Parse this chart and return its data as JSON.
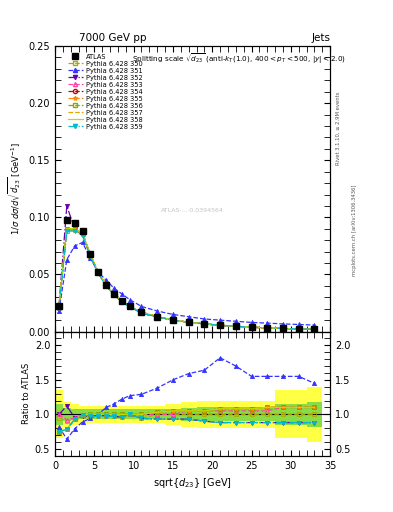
{
  "title_top": "7000 GeV pp",
  "title_right": "Jets",
  "xlabel": "sqrt{d_{23}} [GeV]",
  "ylabel_main": "1/σ dσ/dsqrt(d_{23}) [GeV^{-1}]",
  "ylabel_ratio": "Ratio to ATLAS",
  "rivet_label": "Rivet 3.1.10, ≥ 2.9M events",
  "arxiv_label": "mcplots.cern.ch [arXiv:1306.3436]",
  "xlim": [
    0,
    35
  ],
  "ylim_main": [
    0,
    0.25
  ],
  "ylim_ratio": [
    0.4,
    2.2
  ],
  "x_data": [
    0.5,
    1.5,
    2.5,
    3.5,
    4.5,
    5.5,
    6.5,
    7.5,
    8.5,
    9.5,
    11.0,
    13.0,
    15.0,
    17.0,
    19.0,
    21.0,
    23.0,
    25.0,
    27.0,
    29.0,
    31.0,
    33.0
  ],
  "x_widths": [
    1.0,
    1.0,
    1.0,
    1.0,
    1.0,
    1.0,
    1.0,
    1.0,
    1.0,
    1.0,
    2.0,
    2.0,
    2.0,
    2.0,
    2.0,
    2.0,
    2.0,
    2.0,
    2.0,
    2.0,
    2.0,
    2.0
  ],
  "atlas_y": [
    0.022,
    0.098,
    0.095,
    0.088,
    0.068,
    0.052,
    0.041,
    0.033,
    0.027,
    0.022,
    0.017,
    0.013,
    0.01,
    0.0082,
    0.0067,
    0.0055,
    0.0046,
    0.0038,
    0.0032,
    0.0027,
    0.0023,
    0.0019
  ],
  "atlas_band_yellow": [
    0.35,
    0.18,
    0.15,
    0.12,
    0.12,
    0.12,
    0.12,
    0.12,
    0.12,
    0.12,
    0.12,
    0.12,
    0.15,
    0.18,
    0.2,
    0.2,
    0.2,
    0.2,
    0.2,
    0.35,
    0.35,
    0.4
  ],
  "atlas_band_green": [
    0.15,
    0.09,
    0.08,
    0.07,
    0.07,
    0.07,
    0.07,
    0.07,
    0.07,
    0.07,
    0.07,
    0.07,
    0.08,
    0.09,
    0.1,
    0.1,
    0.1,
    0.1,
    0.1,
    0.15,
    0.15,
    0.18
  ],
  "series": [
    {
      "label": "Pythia 6.428 350",
      "color": "#aaaa00",
      "ls": "--",
      "marker": "s",
      "mfc": "none",
      "filled": false,
      "y_main": [
        0.021,
        0.088,
        0.089,
        0.085,
        0.066,
        0.051,
        0.04,
        0.032,
        0.026,
        0.022,
        0.016,
        0.013,
        0.01,
        0.0082,
        0.0067,
        0.0055,
        0.0046,
        0.0038,
        0.0032,
        0.0027,
        0.0023,
        0.0019
      ],
      "y_ratio": [
        0.95,
        0.9,
        0.94,
        0.97,
        0.97,
        0.98,
        0.98,
        0.97,
        0.96,
        1.0,
        0.94,
        1.0,
        1.0,
        1.0,
        1.0,
        1.0,
        1.0,
        1.0,
        1.0,
        1.0,
        1.0,
        1.0
      ]
    },
    {
      "label": "Pythia 6.428 351",
      "color": "#3333ff",
      "ls": "--",
      "marker": "^",
      "mfc": "#3333ff",
      "filled": true,
      "y_main": [
        0.018,
        0.063,
        0.075,
        0.078,
        0.064,
        0.052,
        0.045,
        0.038,
        0.033,
        0.028,
        0.022,
        0.018,
        0.015,
        0.013,
        0.011,
        0.01,
        0.009,
        0.008,
        0.0074,
        0.0067,
        0.0062,
        0.0057
      ],
      "y_ratio": [
        0.82,
        0.64,
        0.79,
        0.89,
        0.94,
        1.0,
        1.1,
        1.15,
        1.22,
        1.27,
        1.29,
        1.38,
        1.5,
        1.59,
        1.64,
        1.82,
        1.7,
        1.55,
        1.55,
        1.55,
        1.55,
        1.45
      ]
    },
    {
      "label": "Pythia 6.428 352",
      "color": "#6600aa",
      "ls": "-.",
      "marker": "v",
      "mfc": "#6600aa",
      "filled": true,
      "y_main": [
        0.022,
        0.11,
        0.09,
        0.085,
        0.066,
        0.051,
        0.04,
        0.032,
        0.026,
        0.022,
        0.016,
        0.013,
        0.01,
        0.0082,
        0.0067,
        0.0055,
        0.0046,
        0.0038,
        0.0032,
        0.0027,
        0.0023,
        0.0019
      ],
      "y_ratio": [
        1.0,
        1.12,
        0.95,
        0.97,
        0.97,
        0.98,
        0.98,
        0.97,
        0.96,
        1.0,
        0.94,
        0.93,
        0.93,
        0.93,
        0.9,
        0.88,
        0.88,
        0.88,
        0.88,
        0.88,
        0.88,
        0.88
      ]
    },
    {
      "label": "Pythia 6.428 353",
      "color": "#ff44aa",
      "ls": "--",
      "marker": "^",
      "mfc": "none",
      "filled": false,
      "y_main": [
        0.022,
        0.09,
        0.09,
        0.086,
        0.067,
        0.052,
        0.041,
        0.033,
        0.027,
        0.022,
        0.017,
        0.013,
        0.01,
        0.0082,
        0.0067,
        0.0055,
        0.0046,
        0.0038,
        0.0032,
        0.0027,
        0.0023,
        0.0019
      ],
      "y_ratio": [
        1.0,
        0.92,
        0.95,
        0.99,
        0.99,
        1.0,
        1.0,
        1.0,
        1.0,
        1.0,
        1.0,
        1.0,
        1.0,
        1.05,
        1.05,
        1.05,
        1.05,
        1.05,
        1.05,
        1.1,
        1.1,
        1.1
      ]
    },
    {
      "label": "Pythia 6.428 354",
      "color": "#cc0000",
      "ls": "--",
      "marker": "o",
      "mfc": "none",
      "filled": false,
      "y_main": [
        0.022,
        0.09,
        0.09,
        0.086,
        0.067,
        0.052,
        0.041,
        0.033,
        0.027,
        0.022,
        0.017,
        0.013,
        0.01,
        0.0082,
        0.0067,
        0.0055,
        0.0046,
        0.0038,
        0.0032,
        0.0027,
        0.0023,
        0.0019
      ],
      "y_ratio": [
        0.75,
        0.78,
        0.93,
        0.99,
        0.99,
        1.0,
        1.0,
        1.0,
        1.0,
        1.0,
        1.0,
        1.03,
        1.05,
        1.05,
        1.05,
        1.08,
        1.08,
        1.08,
        1.1,
        1.1,
        1.1,
        1.1
      ]
    },
    {
      "label": "Pythia 6.428 355",
      "color": "#ff8800",
      "ls": "--",
      "marker": "*",
      "mfc": "#ff8800",
      "filled": true,
      "y_main": [
        0.022,
        0.09,
        0.09,
        0.086,
        0.067,
        0.052,
        0.041,
        0.033,
        0.027,
        0.022,
        0.017,
        0.013,
        0.01,
        0.0082,
        0.0067,
        0.0055,
        0.0046,
        0.0038,
        0.0032,
        0.0027,
        0.0023,
        0.0019
      ],
      "y_ratio": [
        0.75,
        0.78,
        0.93,
        0.99,
        1.0,
        1.0,
        1.0,
        1.0,
        1.0,
        1.0,
        1.0,
        1.03,
        1.05,
        1.05,
        1.05,
        1.08,
        1.08,
        1.08,
        1.1,
        1.1,
        1.1,
        1.1
      ]
    },
    {
      "label": "Pythia 6.428 356",
      "color": "#88aa00",
      "ls": "--",
      "marker": "s",
      "mfc": "none",
      "filled": false,
      "y_main": [
        0.022,
        0.09,
        0.09,
        0.086,
        0.067,
        0.052,
        0.041,
        0.033,
        0.027,
        0.022,
        0.017,
        0.013,
        0.01,
        0.0082,
        0.0067,
        0.0055,
        0.0046,
        0.0038,
        0.0032,
        0.0027,
        0.0023,
        0.0019
      ],
      "y_ratio": [
        0.75,
        0.78,
        0.93,
        0.99,
        1.0,
        1.0,
        1.0,
        1.0,
        1.0,
        1.0,
        1.0,
        1.03,
        1.05,
        1.05,
        1.05,
        1.08,
        1.08,
        1.08,
        1.1,
        1.1,
        1.1,
        1.1
      ]
    },
    {
      "label": "Pythia 6.428 357",
      "color": "#ddaa00",
      "ls": "--",
      "marker": "none",
      "mfc": "none",
      "filled": false,
      "y_main": [
        0.022,
        0.09,
        0.09,
        0.086,
        0.067,
        0.052,
        0.041,
        0.033,
        0.027,
        0.022,
        0.017,
        0.013,
        0.01,
        0.0082,
        0.0067,
        0.0055,
        0.0046,
        0.0038,
        0.0032,
        0.0027,
        0.0023,
        0.0019
      ],
      "y_ratio": [
        0.75,
        0.78,
        0.93,
        0.99,
        1.0,
        1.0,
        1.0,
        1.0,
        1.0,
        1.0,
        1.0,
        1.03,
        1.05,
        1.05,
        1.05,
        1.08,
        1.08,
        1.08,
        1.1,
        1.1,
        1.1,
        1.1
      ]
    },
    {
      "label": "Pythia 6.428 358",
      "color": "#bbdd00",
      "ls": "-",
      "marker": "none",
      "mfc": "none",
      "filled": false,
      "y_main": [
        0.022,
        0.09,
        0.09,
        0.086,
        0.067,
        0.052,
        0.041,
        0.033,
        0.027,
        0.022,
        0.017,
        0.013,
        0.01,
        0.0082,
        0.0067,
        0.0055,
        0.0046,
        0.0038,
        0.0032,
        0.0027,
        0.0023,
        0.0019
      ],
      "y_ratio": [
        0.75,
        0.78,
        0.93,
        0.99,
        1.0,
        1.0,
        1.0,
        1.0,
        1.0,
        1.0,
        1.0,
        1.03,
        1.05,
        1.05,
        1.05,
        1.08,
        1.08,
        1.08,
        1.1,
        1.1,
        1.1,
        1.1
      ]
    },
    {
      "label": "Pythia 6.428 359",
      "color": "#00bbcc",
      "ls": "-.",
      "marker": "v",
      "mfc": "#00bbcc",
      "filled": true,
      "y_main": [
        0.021,
        0.088,
        0.088,
        0.084,
        0.066,
        0.051,
        0.04,
        0.032,
        0.026,
        0.022,
        0.016,
        0.013,
        0.01,
        0.0082,
        0.0067,
        0.0055,
        0.0046,
        0.0038,
        0.0032,
        0.0027,
        0.0023,
        0.0019
      ],
      "y_ratio": [
        0.75,
        0.78,
        0.93,
        0.99,
        0.97,
        0.97,
        0.97,
        0.97,
        0.96,
        1.0,
        0.94,
        0.93,
        0.93,
        0.93,
        0.9,
        0.88,
        0.88,
        0.88,
        0.88,
        0.88,
        0.88,
        0.88
      ]
    }
  ],
  "bg_color": "#ffffff"
}
